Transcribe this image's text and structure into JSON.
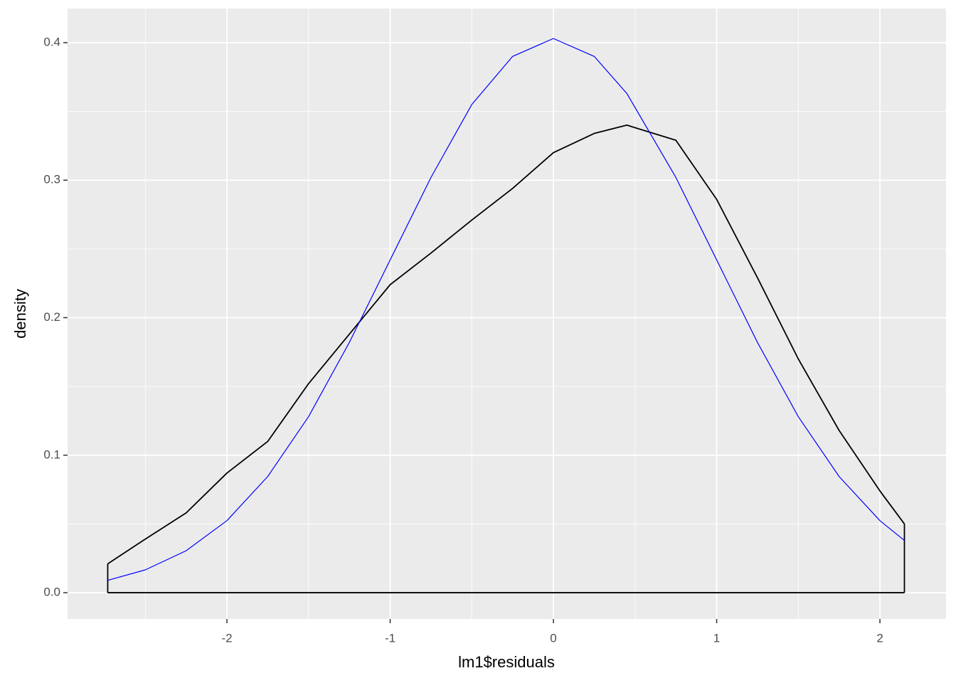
{
  "chart_data": {
    "type": "line",
    "x_label": "lm1$residuals",
    "y_label": "density",
    "x": [
      -2.73,
      -2.5,
      -2.25,
      -2,
      -1.75,
      -1.5,
      -1.25,
      -1,
      -0.75,
      -0.5,
      -0.25,
      0,
      0.25,
      0.45,
      0.75,
      1,
      1.25,
      1.5,
      1.75,
      2,
      2.15
    ],
    "series": [
      {
        "color": "#000000",
        "fill_to_zero": true,
        "values": [
          0.021,
          0.039,
          0.058,
          0.087,
          0.11,
          0.152,
          0.188,
          0.224,
          0.247,
          0.271,
          0.294,
          0.32,
          0.334,
          0.34,
          0.329,
          0.286,
          0.229,
          0.17,
          0.118,
          0.074,
          0.05
        ]
      },
      {
        "color": "#0000FF",
        "values": [
          0.009,
          0.0166,
          0.0305,
          0.0524,
          0.0845,
          0.128,
          0.182,
          0.242,
          0.302,
          0.355,
          0.39,
          0.403,
          0.39,
          0.363,
          0.302,
          0.242,
          0.182,
          0.128,
          0.0845,
          0.0524,
          0.038
        ]
      }
    ],
    "xlim": [
      -2.976,
      2.405
    ],
    "ylim": [
      -0.0191,
      0.4248
    ],
    "xticks": [
      -2,
      -1,
      0,
      1,
      2
    ],
    "yticks": [
      {
        "value": 0,
        "label": "0.0"
      },
      0.1,
      0.2,
      0.3,
      0.4
    ],
    "grid": true
  }
}
